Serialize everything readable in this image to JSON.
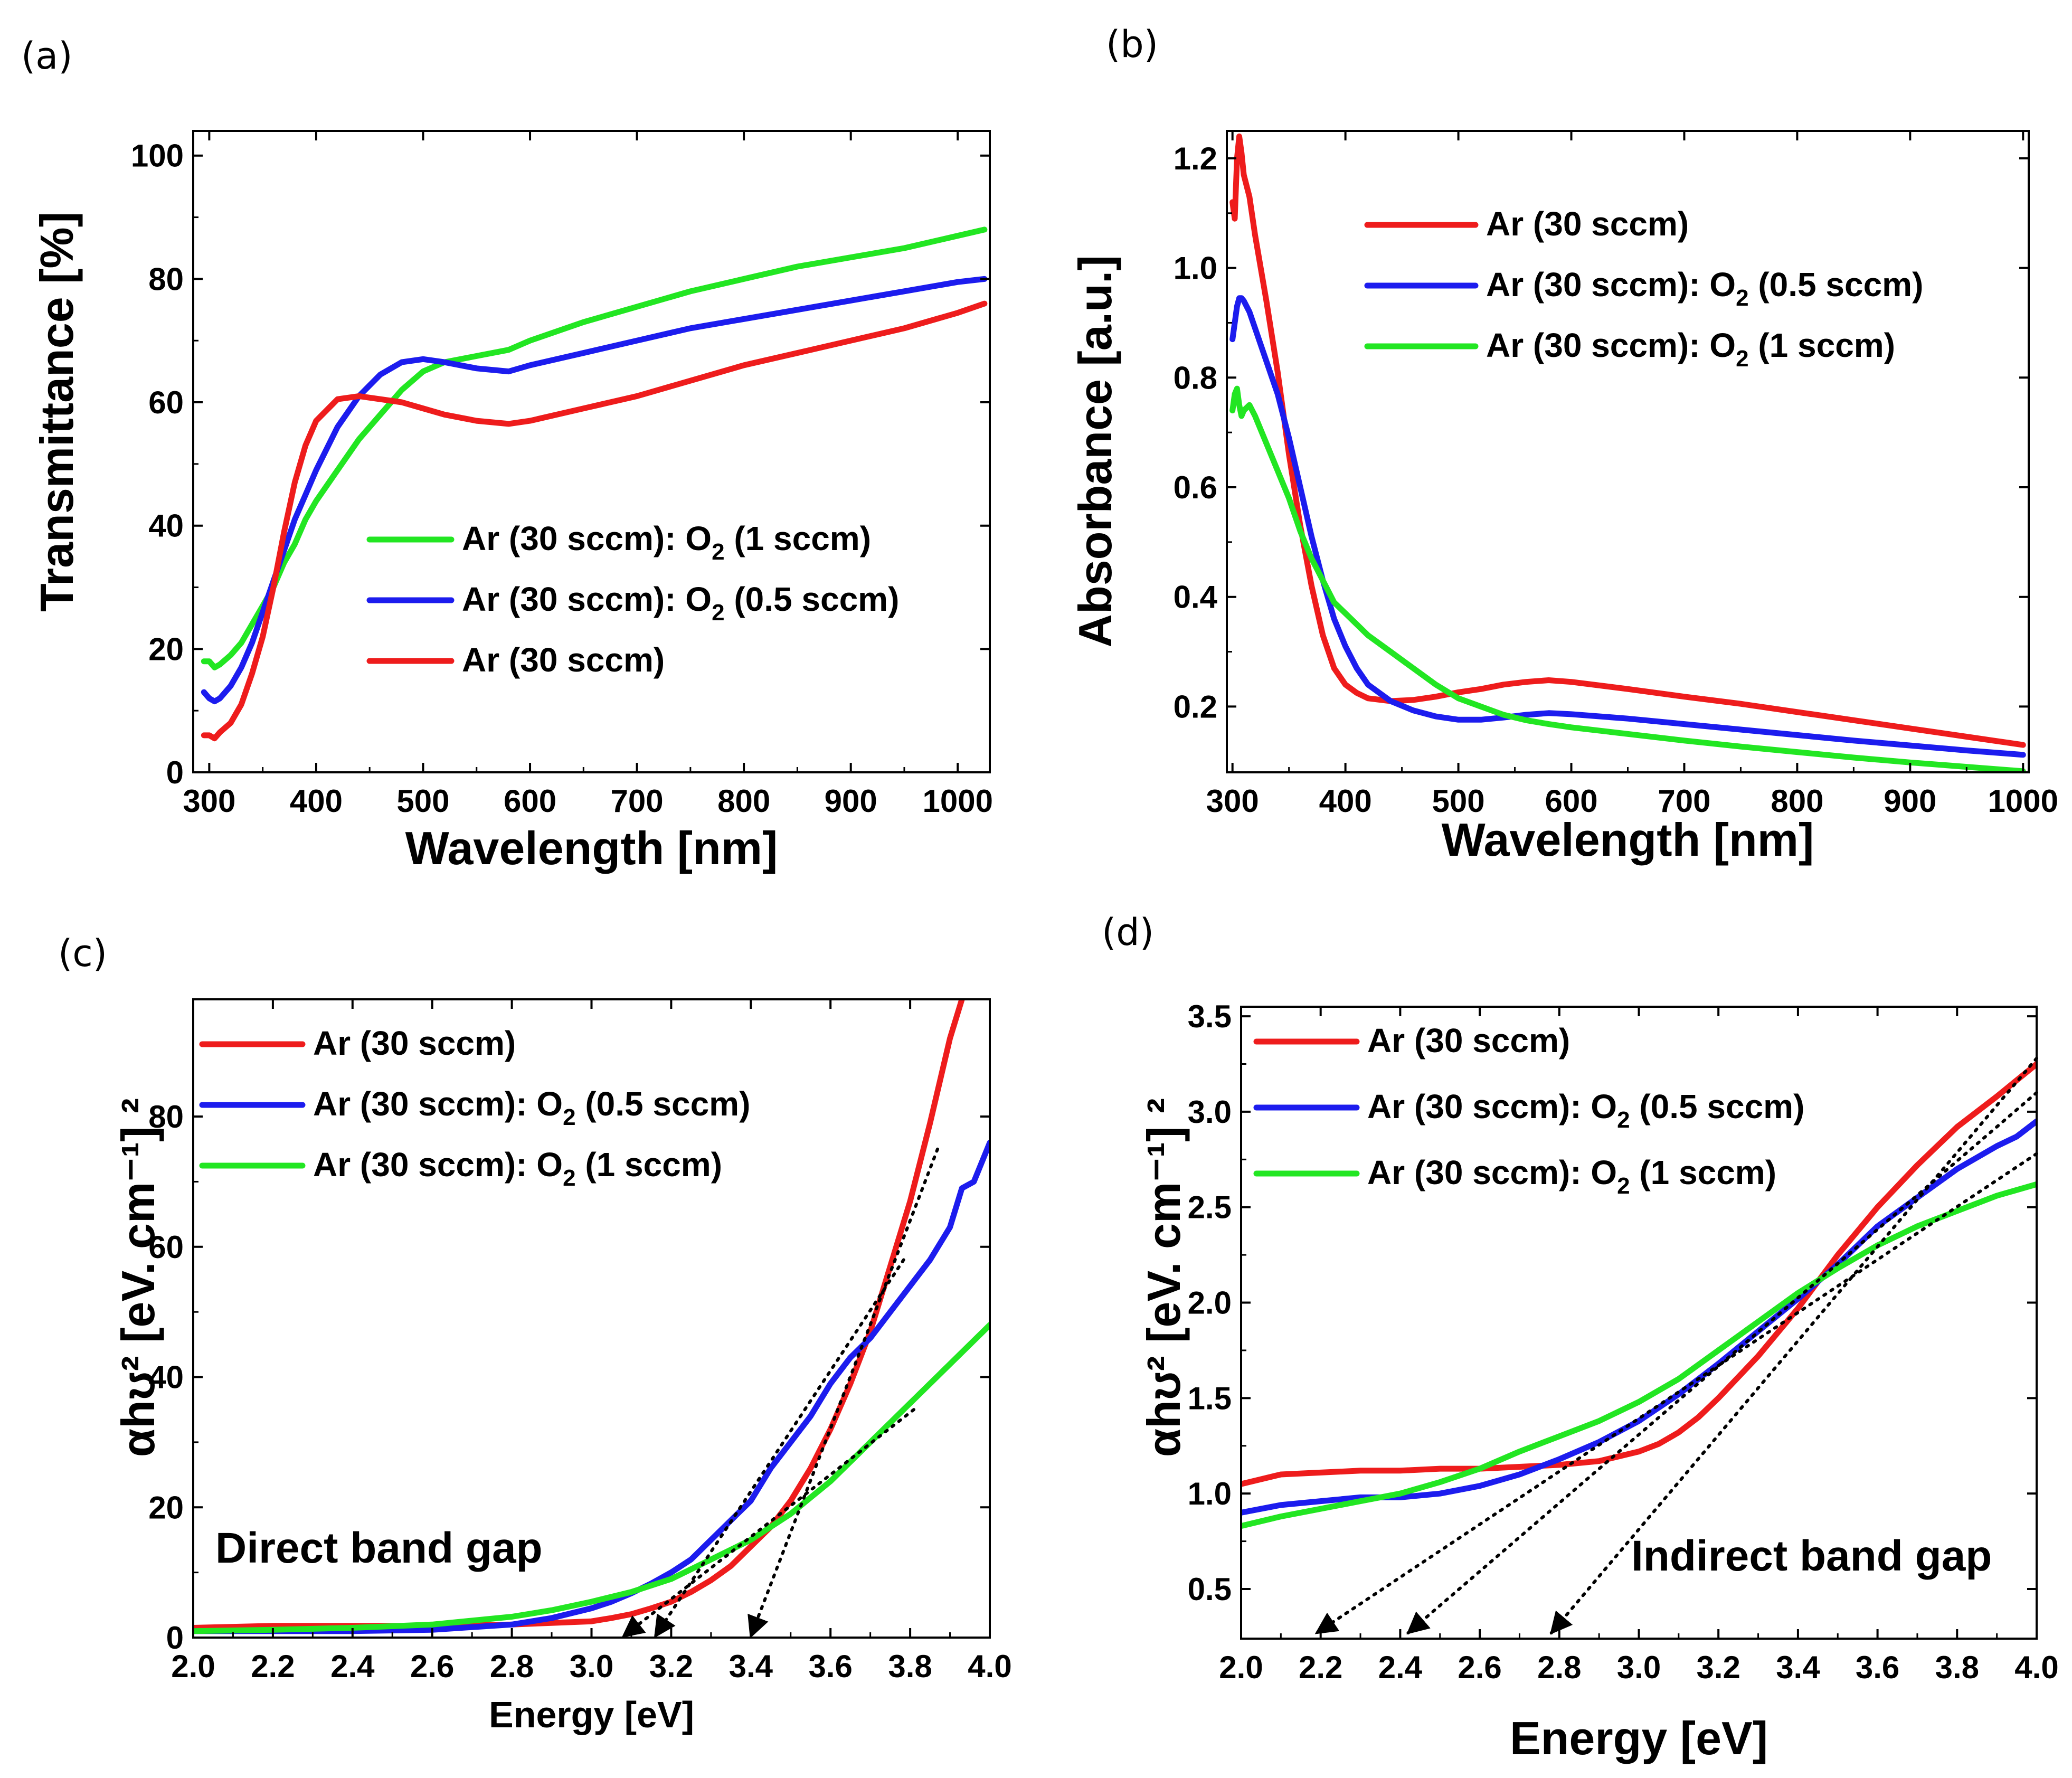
{
  "colors": {
    "ar": "#ee1c1c",
    "ar_o2_05": "#1c1cee",
    "ar_o2_1": "#22e622"
  },
  "chart_data": [
    {
      "id": "a",
      "panel_label": "(a)",
      "type": "line",
      "xlabel": "Wavelength [nm]",
      "ylabel": "Transmittance [%]",
      "xlim": [
        285,
        1030
      ],
      "ylim": [
        0,
        104
      ],
      "xticks": [
        300,
        400,
        500,
        600,
        700,
        800,
        900,
        1000
      ],
      "xtick_labels": [
        "300",
        "400",
        "500",
        "600",
        "700",
        "800",
        "900",
        "1000"
      ],
      "yticks": [
        0,
        20,
        40,
        60,
        80,
        100
      ],
      "ytick_labels": [
        "0",
        "20",
        "40",
        "60",
        "80",
        "100"
      ],
      "legend_position": "center-right",
      "legend": [
        "Ar (30 sccm): O2 (1 sccm)",
        "Ar (30 sccm): O2 (0.5 sccm)",
        "Ar (30 sccm)"
      ],
      "series": [
        {
          "name": "Ar (30 sccm): O2 (1 sccm)",
          "color": "#22e622",
          "x": [
            295,
            300,
            305,
            310,
            320,
            330,
            340,
            350,
            360,
            370,
            380,
            390,
            400,
            420,
            440,
            460,
            480,
            500,
            520,
            550,
            580,
            600,
            650,
            700,
            750,
            800,
            850,
            900,
            950,
            1000,
            1025
          ],
          "y": [
            18,
            18,
            17,
            17.5,
            19,
            21,
            24,
            27,
            30,
            34,
            37,
            41,
            44,
            49,
            54,
            58,
            62,
            65,
            66.5,
            67.5,
            68.5,
            70,
            73,
            75.5,
            78,
            80,
            82,
            83.5,
            85,
            87,
            88
          ]
        },
        {
          "name": "Ar (30 sccm): O2 (0.5 sccm)",
          "color": "#1c1cee",
          "x": [
            295,
            300,
            305,
            310,
            320,
            330,
            340,
            350,
            360,
            370,
            380,
            390,
            400,
            420,
            440,
            460,
            480,
            500,
            520,
            550,
            580,
            600,
            650,
            700,
            750,
            800,
            850,
            900,
            950,
            1000,
            1025
          ],
          "y": [
            13,
            12,
            11.5,
            12,
            14,
            17,
            21,
            26,
            31,
            36,
            41,
            45,
            49,
            56,
            61,
            64.5,
            66.5,
            67,
            66.5,
            65.5,
            65,
            66,
            68,
            70,
            72,
            73.5,
            75,
            76.5,
            78,
            79.5,
            80
          ]
        },
        {
          "name": "Ar (30 sccm)",
          "color": "#ee1c1c",
          "x": [
            295,
            300,
            305,
            310,
            320,
            330,
            340,
            350,
            360,
            370,
            380,
            390,
            400,
            420,
            440,
            460,
            480,
            500,
            520,
            550,
            580,
            600,
            650,
            700,
            750,
            800,
            850,
            900,
            950,
            1000,
            1025
          ],
          "y": [
            6,
            6,
            5.5,
            6.5,
            8,
            11,
            16,
            22,
            30,
            39,
            47,
            53,
            57,
            60.5,
            61,
            60.5,
            60,
            59,
            58,
            57,
            56.5,
            57,
            59,
            61,
            63.5,
            66,
            68,
            70,
            72,
            74.5,
            76
          ]
        }
      ]
    },
    {
      "id": "b",
      "panel_label": "(b)",
      "type": "line",
      "xlabel": "Wavelength [nm]",
      "ylabel": "Absorbance [a.u.]",
      "xlim": [
        295,
        1005
      ],
      "ylim": [
        0.08,
        1.25
      ],
      "xticks": [
        300,
        400,
        500,
        600,
        700,
        800,
        900,
        1000
      ],
      "xtick_labels": [
        "300",
        "400",
        "500",
        "600",
        "700",
        "800",
        "900",
        "1000"
      ],
      "yticks": [
        0.2,
        0.4,
        0.6,
        0.8,
        1.0,
        1.2
      ],
      "ytick_labels": [
        "0.2",
        "0.4",
        "0.6",
        "0.8",
        "1.0",
        "1.2"
      ],
      "legend_position": "top-right",
      "legend": [
        "Ar (30 sccm)",
        "Ar (30 sccm): O2 (0.5 sccm)",
        "Ar (30 sccm): O2 (1 sccm)"
      ],
      "series": [
        {
          "name": "Ar (30 sccm)",
          "color": "#ee1c1c",
          "x": [
            300,
            302,
            304,
            306,
            308,
            310,
            315,
            320,
            330,
            340,
            350,
            360,
            370,
            380,
            390,
            400,
            410,
            420,
            440,
            460,
            480,
            500,
            520,
            540,
            560,
            580,
            600,
            650,
            700,
            750,
            800,
            850,
            900,
            950,
            1000
          ],
          "y": [
            1.12,
            1.09,
            1.2,
            1.24,
            1.21,
            1.17,
            1.13,
            1.06,
            0.94,
            0.81,
            0.66,
            0.53,
            0.42,
            0.33,
            0.27,
            0.24,
            0.225,
            0.215,
            0.21,
            0.212,
            0.218,
            0.226,
            0.232,
            0.24,
            0.245,
            0.248,
            0.245,
            0.232,
            0.218,
            0.205,
            0.19,
            0.175,
            0.16,
            0.145,
            0.13
          ]
        },
        {
          "name": "Ar (30 sccm): O2 (0.5 sccm)",
          "color": "#1c1cee",
          "x": [
            300,
            302,
            304,
            306,
            308,
            310,
            315,
            320,
            330,
            340,
            350,
            360,
            370,
            380,
            390,
            400,
            410,
            420,
            440,
            460,
            480,
            500,
            520,
            540,
            560,
            580,
            600,
            650,
            700,
            750,
            800,
            850,
            900,
            950,
            1000
          ],
          "y": [
            0.87,
            0.9,
            0.93,
            0.945,
            0.945,
            0.94,
            0.92,
            0.89,
            0.83,
            0.77,
            0.69,
            0.6,
            0.51,
            0.43,
            0.36,
            0.31,
            0.27,
            0.24,
            0.21,
            0.193,
            0.182,
            0.176,
            0.176,
            0.18,
            0.185,
            0.188,
            0.186,
            0.178,
            0.168,
            0.158,
            0.148,
            0.138,
            0.129,
            0.12,
            0.112
          ]
        },
        {
          "name": "Ar (30 sccm): O2 (1 sccm)",
          "color": "#22e622",
          "x": [
            300,
            302,
            304,
            306,
            308,
            310,
            315,
            320,
            330,
            340,
            350,
            360,
            370,
            380,
            390,
            400,
            410,
            420,
            440,
            460,
            480,
            500,
            520,
            540,
            560,
            580,
            600,
            650,
            700,
            750,
            800,
            850,
            900,
            950,
            1000
          ],
          "y": [
            0.74,
            0.77,
            0.78,
            0.75,
            0.73,
            0.74,
            0.75,
            0.73,
            0.68,
            0.63,
            0.58,
            0.52,
            0.47,
            0.43,
            0.39,
            0.37,
            0.35,
            0.33,
            0.3,
            0.27,
            0.24,
            0.215,
            0.2,
            0.185,
            0.175,
            0.168,
            0.162,
            0.15,
            0.138,
            0.127,
            0.117,
            0.107,
            0.098,
            0.09,
            0.082
          ]
        }
      ]
    },
    {
      "id": "c",
      "panel_label": "(c)",
      "type": "line",
      "xlabel": "Energy [eV]",
      "ylabel": "αhʊ² [eV. cm⁻¹] ²",
      "xlim": [
        2.0,
        4.0
      ],
      "ylim": [
        0,
        98
      ],
      "xticks": [
        2.0,
        2.2,
        2.4,
        2.6,
        2.8,
        3.0,
        3.2,
        3.4,
        3.6,
        3.8,
        4.0
      ],
      "xtick_labels": [
        "2.0",
        "2.2",
        "2.4",
        "2.6",
        "2.8",
        "3.0",
        "3.2",
        "3.4",
        "3.6",
        "3.8",
        "4.0"
      ],
      "yticks": [
        0,
        20,
        40,
        60,
        80
      ],
      "ytick_labels": [
        "0",
        "20",
        "40",
        "60",
        "80"
      ],
      "legend_position": "top-left",
      "legend": [
        "Ar (30 sccm)",
        "Ar (30 sccm): O2 (0.5 sccm)",
        "Ar (30 sccm): O2 (1 sccm)"
      ],
      "annotation": "Direct band gap",
      "series": [
        {
          "name": "Ar (30 sccm)",
          "color": "#ee1c1c",
          "x": [
            2.0,
            2.2,
            2.4,
            2.6,
            2.8,
            3.0,
            3.05,
            3.1,
            3.15,
            3.2,
            3.25,
            3.3,
            3.35,
            3.4,
            3.45,
            3.5,
            3.55,
            3.6,
            3.65,
            3.7,
            3.75,
            3.8,
            3.85,
            3.9,
            3.94
          ],
          "y": [
            1.5,
            1.8,
            1.8,
            1.8,
            2,
            2.5,
            3,
            3.6,
            4.5,
            5.5,
            7,
            8.8,
            11,
            14,
            17,
            21,
            26,
            32,
            39,
            47,
            57,
            67,
            79,
            92,
            100
          ]
        },
        {
          "name": "Ar (30 sccm): O2 (0.5 sccm)",
          "color": "#1c1cee",
          "x": [
            2.0,
            2.2,
            2.4,
            2.6,
            2.8,
            2.9,
            3.0,
            3.05,
            3.1,
            3.15,
            3.2,
            3.25,
            3.3,
            3.35,
            3.4,
            3.45,
            3.5,
            3.55,
            3.6,
            3.65,
            3.7,
            3.75,
            3.8,
            3.85,
            3.9,
            3.93,
            3.96,
            4.0
          ],
          "y": [
            1,
            1,
            1,
            1.2,
            2,
            3,
            4.5,
            5.5,
            6.8,
            8.3,
            10,
            12,
            15,
            18,
            21,
            26,
            30,
            34,
            39,
            43,
            46,
            50,
            54,
            58,
            63,
            69,
            70,
            76
          ]
        },
        {
          "name": "Ar (30 sccm): O2 (1 sccm)",
          "color": "#22e622",
          "x": [
            2.0,
            2.2,
            2.4,
            2.6,
            2.8,
            2.9,
            3.0,
            3.1,
            3.2,
            3.3,
            3.4,
            3.5,
            3.6,
            3.65,
            3.7,
            3.75,
            3.8,
            3.85,
            3.9,
            3.95,
            4.0
          ],
          "y": [
            1,
            1.2,
            1.5,
            2,
            3.2,
            4.2,
            5.5,
            7,
            9,
            12,
            15,
            19,
            24,
            27,
            30,
            33,
            36,
            39,
            42,
            45,
            48
          ]
        }
      ],
      "tangents": [
        {
          "series": "Ar (30 sccm)",
          "x_intercept": 3.4,
          "slope": 160
        },
        {
          "series": "Ar (30 sccm): O2 (0.5 sccm)",
          "x_intercept": 3.16,
          "slope": 93
        },
        {
          "series": "Ar (30 sccm): O2 (1 sccm)",
          "x_intercept": 3.08,
          "slope": 48
        }
      ]
    },
    {
      "id": "d",
      "panel_label": "(d)",
      "type": "line",
      "xlabel": "Energy [eV]",
      "ylabel": "αhʊ² [eV. cm⁻¹] ²",
      "xlim": [
        2.0,
        4.0
      ],
      "ylim": [
        0.24,
        3.55
      ],
      "xticks": [
        2.0,
        2.2,
        2.4,
        2.6,
        2.8,
        3.0,
        3.2,
        3.4,
        3.6,
        3.8,
        4.0
      ],
      "xtick_labels": [
        "2.0",
        "2.2",
        "2.4",
        "2.6",
        "2.8",
        "3.0",
        "3.2",
        "3.4",
        "3.6",
        "3.8",
        "4.0"
      ],
      "yticks": [
        0.5,
        1.0,
        1.5,
        2.0,
        2.5,
        3.0,
        3.5
      ],
      "ytick_labels": [
        "0.5",
        "1.0",
        "1.5",
        "2.0",
        "2.5",
        "3.0",
        "3.5"
      ],
      "legend_position": "top-left",
      "legend": [
        "Ar (30 sccm)",
        "Ar (30 sccm): O2 (0.5 sccm)",
        "Ar (30 sccm): O2 (1 sccm)"
      ],
      "annotation": "Indirect band gap",
      "series": [
        {
          "name": "Ar (30 sccm)",
          "color": "#ee1c1c",
          "x": [
            2.0,
            2.1,
            2.2,
            2.3,
            2.4,
            2.5,
            2.6,
            2.7,
            2.8,
            2.9,
            3.0,
            3.05,
            3.1,
            3.15,
            3.2,
            3.3,
            3.4,
            3.5,
            3.6,
            3.7,
            3.8,
            3.9,
            4.0
          ],
          "y": [
            1.05,
            1.1,
            1.11,
            1.12,
            1.12,
            1.13,
            1.13,
            1.14,
            1.15,
            1.17,
            1.22,
            1.26,
            1.32,
            1.4,
            1.5,
            1.72,
            1.97,
            2.25,
            2.5,
            2.72,
            2.92,
            3.08,
            3.25
          ]
        },
        {
          "name": "Ar (30 sccm): O2 (0.5 sccm)",
          "color": "#1c1cee",
          "x": [
            2.0,
            2.1,
            2.2,
            2.3,
            2.4,
            2.5,
            2.6,
            2.7,
            2.8,
            2.9,
            3.0,
            3.1,
            3.2,
            3.3,
            3.4,
            3.5,
            3.6,
            3.7,
            3.8,
            3.9,
            3.95,
            4.0
          ],
          "y": [
            0.9,
            0.94,
            0.96,
            0.98,
            0.98,
            1.0,
            1.04,
            1.1,
            1.18,
            1.27,
            1.38,
            1.52,
            1.68,
            1.85,
            2.02,
            2.2,
            2.4,
            2.55,
            2.7,
            2.82,
            2.87,
            2.95
          ]
        },
        {
          "name": "Ar (30 sccm): O2 (1 sccm)",
          "color": "#22e622",
          "x": [
            2.0,
            2.1,
            2.2,
            2.3,
            2.4,
            2.5,
            2.6,
            2.7,
            2.8,
            2.9,
            3.0,
            3.1,
            3.2,
            3.3,
            3.4,
            3.5,
            3.6,
            3.7,
            3.8,
            3.9,
            4.0
          ],
          "y": [
            0.83,
            0.88,
            0.92,
            0.96,
            1.0,
            1.06,
            1.13,
            1.22,
            1.3,
            1.38,
            1.48,
            1.6,
            1.75,
            1.9,
            2.05,
            2.18,
            2.3,
            2.4,
            2.48,
            2.56,
            2.62
          ]
        }
      ],
      "tangents": [
        {
          "series": "Ar (30 sccm)",
          "x_intercept": 2.78,
          "slope": 2.45
        },
        {
          "series": "Ar (30 sccm): O2 (0.5 sccm)",
          "x_intercept": 2.42,
          "slope": 1.77
        },
        {
          "series": "Ar (30 sccm): O2 (1 sccm)",
          "x_intercept": 2.19,
          "slope": 1.41
        }
      ]
    }
  ]
}
